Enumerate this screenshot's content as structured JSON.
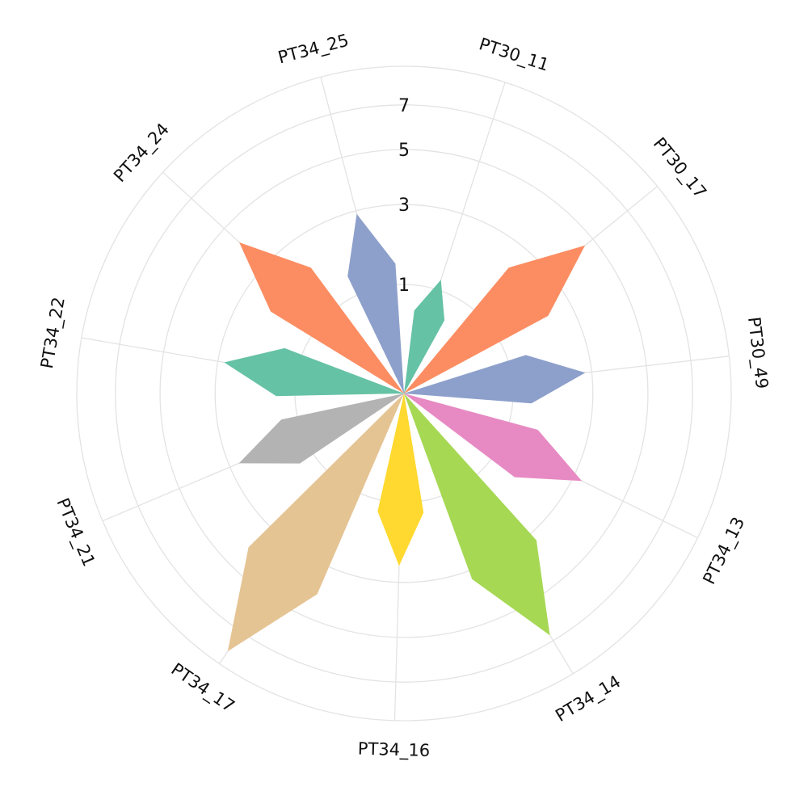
{
  "chart_data": {
    "type": "polar-bar",
    "title": "",
    "radial_scale": "sqrt",
    "radial_range": [
      0,
      9
    ],
    "radial_ticks": [
      1,
      3,
      5,
      7
    ],
    "grid": true,
    "categories": [
      "PT30_11",
      "PT30_17",
      "PT30_49",
      "PT34_13",
      "PT34_14",
      "PT34_16",
      "PT34_17",
      "PT34_21",
      "PT34_22",
      "PT34_24",
      "PT34_25"
    ],
    "values": [
      1.2,
      4.6,
      2.8,
      3.3,
      6.7,
      2.5,
      8.2,
      2.7,
      2.8,
      4.2,
      2.9
    ],
    "colors": [
      "#66c2a5",
      "#fc8d62",
      "#8da0cb",
      "#e78ac3",
      "#a6d854",
      "#ffd92f",
      "#e5c494",
      "#b3b3b3",
      "#66c2a5",
      "#fc8d62",
      "#8da0cb"
    ]
  }
}
